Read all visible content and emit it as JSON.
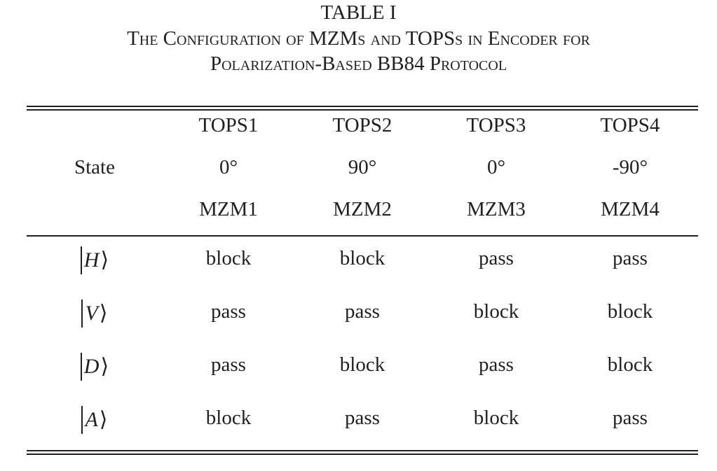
{
  "caption": {
    "label": "TABLE I",
    "line2": "The Configuration of MZMs and TOPSs in Encoder for",
    "line3": "Polarization-Based BB84 Protocol"
  },
  "table": {
    "state_header": "State",
    "columns": [
      {
        "tops": "TOPS1",
        "angle": "0°",
        "mzm": "MZM1"
      },
      {
        "tops": "TOPS2",
        "angle": "90°",
        "mzm": "MZM2"
      },
      {
        "tops": "TOPS3",
        "angle": "0°",
        "mzm": "MZM3"
      },
      {
        "tops": "TOPS4",
        "angle": "-90°",
        "mzm": "MZM4"
      }
    ],
    "rows": [
      {
        "state": "H",
        "values": [
          "block",
          "block",
          "pass",
          "pass"
        ]
      },
      {
        "state": "V",
        "values": [
          "pass",
          "pass",
          "block",
          "block"
        ]
      },
      {
        "state": "D",
        "values": [
          "pass",
          "block",
          "pass",
          "block"
        ]
      },
      {
        "state": "A",
        "values": [
          "block",
          "pass",
          "block",
          "pass"
        ]
      }
    ]
  }
}
